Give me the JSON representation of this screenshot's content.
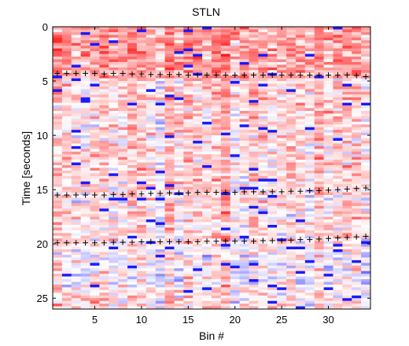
{
  "chart_data": {
    "type": "heatmap",
    "title": "STLN",
    "xlabel": "Bin #",
    "ylabel": "Time [seconds]",
    "xlim": [
      0.5,
      34.5
    ],
    "ylim": [
      0,
      26
    ],
    "y_reversed": true,
    "xticks": [
      5,
      10,
      15,
      20,
      25,
      30
    ],
    "yticks": [
      0,
      5,
      10,
      15,
      20,
      25
    ],
    "colormap": {
      "low": "#0000ff",
      "mid": "#ffffff",
      "high": "#ff0000"
    },
    "bins": 34,
    "time_rows": 104,
    "time_step": 0.25,
    "markers": [
      {
        "name": "",
        "points": [
          [
            1,
            4.3
          ],
          [
            2,
            4.3
          ],
          [
            3,
            4.3
          ],
          [
            4,
            4.3
          ],
          [
            5,
            4.3
          ],
          [
            6,
            4.35
          ],
          [
            7,
            4.3
          ],
          [
            8,
            4.3
          ],
          [
            9,
            4.35
          ],
          [
            10,
            4.35
          ],
          [
            11,
            4.4
          ],
          [
            12,
            4.4
          ],
          [
            13,
            4.4
          ],
          [
            14,
            4.4
          ],
          [
            15,
            4.45
          ],
          [
            16,
            4.45
          ],
          [
            17,
            4.45
          ],
          [
            18,
            4.45
          ],
          [
            19,
            4.45
          ],
          [
            20,
            4.45
          ],
          [
            21,
            4.45
          ],
          [
            22,
            4.45
          ],
          [
            23,
            4.45
          ],
          [
            24,
            4.45
          ],
          [
            25,
            4.45
          ],
          [
            26,
            4.45
          ],
          [
            27,
            4.45
          ],
          [
            28,
            4.45
          ],
          [
            29,
            4.45
          ],
          [
            30,
            4.45
          ],
          [
            31,
            4.45
          ],
          [
            32,
            4.45
          ],
          [
            33,
            4.5
          ],
          [
            34,
            4.6
          ]
        ]
      },
      {
        "name": "",
        "points": [
          [
            1,
            15.5
          ],
          [
            2,
            15.5
          ],
          [
            3,
            15.5
          ],
          [
            4,
            15.5
          ],
          [
            5,
            15.5
          ],
          [
            6,
            15.5
          ],
          [
            7,
            15.45
          ],
          [
            8,
            15.45
          ],
          [
            9,
            15.4
          ],
          [
            10,
            15.4
          ],
          [
            11,
            15.35
          ],
          [
            12,
            15.35
          ],
          [
            13,
            15.3
          ],
          [
            14,
            15.3
          ],
          [
            15,
            15.3
          ],
          [
            16,
            15.25
          ],
          [
            17,
            15.25
          ],
          [
            18,
            15.25
          ],
          [
            19,
            15.25
          ],
          [
            20,
            15.25
          ],
          [
            21,
            15.2
          ],
          [
            22,
            15.2
          ],
          [
            23,
            15.2
          ],
          [
            24,
            15.2
          ],
          [
            25,
            15.2
          ],
          [
            26,
            15.15
          ],
          [
            27,
            15.15
          ],
          [
            28,
            15.1
          ],
          [
            29,
            15.1
          ],
          [
            30,
            15.05
          ],
          [
            31,
            15.0
          ],
          [
            32,
            14.95
          ],
          [
            33,
            14.9
          ],
          [
            34,
            14.85
          ]
        ]
      },
      {
        "name": "",
        "points": [
          [
            1,
            19.9
          ],
          [
            2,
            19.9
          ],
          [
            3,
            19.9
          ],
          [
            4,
            19.9
          ],
          [
            5,
            19.9
          ],
          [
            6,
            19.9
          ],
          [
            7,
            19.85
          ],
          [
            8,
            19.85
          ],
          [
            9,
            19.85
          ],
          [
            10,
            19.8
          ],
          [
            11,
            19.8
          ],
          [
            12,
            19.8
          ],
          [
            13,
            19.8
          ],
          [
            14,
            19.8
          ],
          [
            15,
            19.8
          ],
          [
            16,
            19.8
          ],
          [
            17,
            19.75
          ],
          [
            18,
            19.75
          ],
          [
            19,
            19.75
          ],
          [
            20,
            19.75
          ],
          [
            21,
            19.75
          ],
          [
            22,
            19.75
          ],
          [
            23,
            19.7
          ],
          [
            24,
            19.7
          ],
          [
            25,
            19.7
          ],
          [
            26,
            19.65
          ],
          [
            27,
            19.6
          ],
          [
            28,
            19.6
          ],
          [
            29,
            19.55
          ],
          [
            30,
            19.5
          ],
          [
            31,
            19.45
          ],
          [
            32,
            19.4
          ],
          [
            33,
            19.35
          ],
          [
            34,
            19.3
          ]
        ]
      }
    ],
    "grid": false,
    "legend": "none"
  }
}
